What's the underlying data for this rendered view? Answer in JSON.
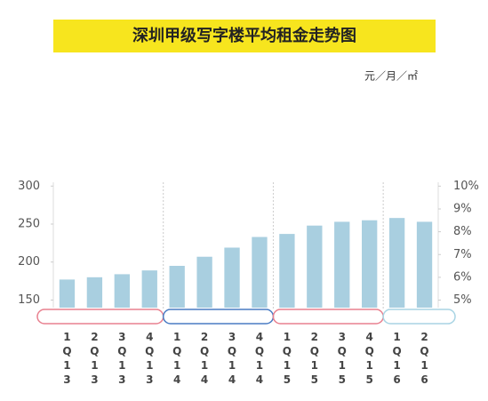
{
  "chart_data": {
    "type": "bar",
    "title": "深圳甲级写字楼平均租金走势图",
    "unit": "元／月／㎡",
    "categories": [
      "1Q13",
      "2Q13",
      "3Q13",
      "4Q13",
      "1Q14",
      "2Q14",
      "3Q14",
      "4Q14",
      "1Q15",
      "2Q15",
      "3Q15",
      "4Q15",
      "1Q16",
      "2Q16"
    ],
    "values": [
      177,
      180,
      184,
      189,
      195,
      207,
      219,
      233,
      237,
      248,
      253,
      255,
      258,
      253
    ],
    "color": "#a9cfe0",
    "ylim": [
      140,
      305
    ],
    "yticks": [
      150,
      200,
      250,
      300
    ],
    "y2lim": [
      4.67,
      10.17
    ],
    "y2ticks": [
      {
        "value": 5,
        "label": "5%"
      },
      {
        "value": 6,
        "label": "6%"
      },
      {
        "value": 7,
        "label": "7%"
      },
      {
        "value": 8,
        "label": "8%"
      },
      {
        "value": 9,
        "label": "9%"
      },
      {
        "value": 10,
        "label": "10%"
      }
    ]
  }
}
